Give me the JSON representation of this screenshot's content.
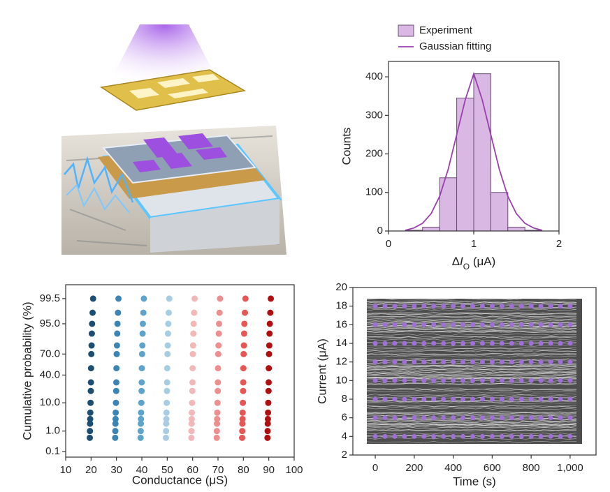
{
  "chart_data": [
    {
      "type": "histogram",
      "y_label": "Counts",
      "x_label": [
        "Δ",
        "I",
        "O",
        " (μA)"
      ],
      "xlim": [
        0,
        2
      ],
      "xticks": [
        0,
        1,
        2
      ],
      "ylim": [
        0,
        440
      ],
      "yticks": [
        0,
        100,
        200,
        300,
        400
      ],
      "bins": [
        0.2,
        0.4,
        0.6,
        0.8,
        1.0,
        1.2,
        1.4,
        1.6,
        1.8
      ],
      "series": [
        {
          "name": "Experiment",
          "color": "#d9b8e4",
          "values": [
            2,
            10,
            138,
            345,
            408,
            100,
            10,
            2
          ]
        },
        {
          "name": "Gaussian fitting",
          "color": "#9a3fb0",
          "type": "line",
          "x": [
            0.2,
            0.3,
            0.4,
            0.5,
            0.6,
            0.7,
            0.8,
            0.9,
            1.0,
            1.1,
            1.2,
            1.3,
            1.4,
            1.5,
            1.6,
            1.7,
            1.8
          ],
          "values": [
            2,
            8,
            20,
            45,
            90,
            160,
            250,
            340,
            408,
            340,
            250,
            160,
            90,
            45,
            20,
            8,
            2
          ]
        }
      ]
    },
    {
      "type": "scatter",
      "y_scale": "probability",
      "y_label": "Cumulative probability (%)",
      "x_label": "Conductance (μS)",
      "xlim": [
        10,
        100
      ],
      "xticks": [
        10,
        20,
        30,
        40,
        50,
        60,
        70,
        80,
        90,
        100
      ],
      "ylim": [
        0.05,
        99.9
      ],
      "yticks": [
        0.1,
        {
          "value": 1,
          "label": "1.0"
        },
        {
          "value": 10,
          "label": "10.0"
        },
        {
          "value": 40,
          "label": "40.0"
        },
        {
          "value": 70,
          "label": "70.0"
        },
        {
          "value": 95,
          "label": "95.0"
        },
        99.5
      ],
      "series": [
        {
          "color": "#1c4e72",
          "x": [
            19.5,
            19.55,
            19.6,
            19.65,
            19.7,
            19.8,
            19.9,
            19.95,
            20,
            20.1,
            20.2,
            20.3,
            20.4,
            20.6,
            20.8
          ],
          "values": [
            0.5,
            1,
            2,
            3,
            5,
            10,
            20,
            30,
            50,
            70,
            80,
            90,
            95,
            98,
            99.5
          ]
        },
        {
          "color": "#3c84b4",
          "x": [
            29.5,
            29.55,
            29.6,
            29.65,
            29.7,
            29.8,
            29.9,
            29.95,
            30,
            30.1,
            30.2,
            30.3,
            30.4,
            30.6,
            30.8
          ],
          "values": [
            0.5,
            1,
            2,
            3,
            5,
            10,
            20,
            30,
            50,
            70,
            80,
            90,
            95,
            98,
            99.5
          ]
        },
        {
          "color": "#5ea3cc",
          "x": [
            39.5,
            39.55,
            39.6,
            39.65,
            39.7,
            39.8,
            39.9,
            39.95,
            40,
            40.1,
            40.2,
            40.3,
            40.4,
            40.6,
            40.8
          ],
          "values": [
            0.5,
            1,
            2,
            3,
            5,
            10,
            20,
            30,
            50,
            70,
            80,
            90,
            95,
            98,
            99.5
          ]
        },
        {
          "color": "#a8cde3",
          "x": [
            49.5,
            49.55,
            49.6,
            49.65,
            49.7,
            49.8,
            49.9,
            49.95,
            50,
            50.1,
            50.2,
            50.3,
            50.4,
            50.6,
            50.8
          ],
          "values": [
            0.5,
            1,
            2,
            3,
            5,
            10,
            20,
            30,
            50,
            70,
            80,
            90,
            95,
            98,
            99.5
          ]
        },
        {
          "color": "#f2b8b8",
          "x": [
            59.5,
            59.55,
            59.6,
            59.65,
            59.7,
            59.8,
            59.9,
            59.95,
            60,
            60.1,
            60.2,
            60.3,
            60.4,
            60.6,
            60.8
          ],
          "values": [
            0.5,
            1,
            2,
            3,
            5,
            10,
            20,
            30,
            50,
            70,
            80,
            90,
            95,
            98,
            99.5
          ]
        },
        {
          "color": "#ee8e8e",
          "x": [
            69.5,
            69.55,
            69.6,
            69.65,
            69.7,
            69.8,
            69.9,
            69.95,
            70,
            70.1,
            70.2,
            70.3,
            70.4,
            70.6,
            70.8
          ],
          "values": [
            0.5,
            1,
            2,
            3,
            5,
            10,
            20,
            30,
            50,
            70,
            80,
            90,
            95,
            98,
            99.5
          ]
        },
        {
          "color": "#e85555",
          "x": [
            79.5,
            79.55,
            79.6,
            79.65,
            79.7,
            79.8,
            79.9,
            79.95,
            80,
            80.1,
            80.2,
            80.3,
            80.4,
            80.6,
            80.8
          ],
          "values": [
            0.5,
            1,
            2,
            3,
            5,
            10,
            20,
            30,
            50,
            70,
            80,
            90,
            95,
            98,
            99.5
          ]
        },
        {
          "color": "#b00f0f",
          "x": [
            89.5,
            89.55,
            89.6,
            89.65,
            89.7,
            89.8,
            89.9,
            89.95,
            90,
            90.1,
            90.2,
            90.3,
            90.4,
            90.6,
            90.8
          ],
          "values": [
            0.5,
            1,
            2,
            3,
            5,
            10,
            20,
            30,
            50,
            70,
            80,
            90,
            95,
            98,
            99.5
          ]
        }
      ]
    },
    {
      "type": "scatter",
      "y_label": "Current (μA)",
      "x_label": "Time (s)",
      "xlim": [
        -115,
        1133
      ],
      "xticks": [
        0,
        200,
        400,
        600,
        800,
        {
          "value": 1000,
          "label": "1,000"
        }
      ],
      "ylim": [
        2,
        20
      ],
      "yticks": [
        2,
        4,
        6,
        8,
        10,
        12,
        14,
        16,
        18,
        20
      ],
      "traces": {
        "color": "#4d4d4d",
        "range": [
          3.2,
          18.8
        ]
      },
      "x": [
        0,
        50,
        100,
        150,
        200,
        250,
        300,
        350,
        400,
        450,
        500,
        550,
        600,
        650,
        700,
        750,
        800,
        850,
        900,
        950,
        1000
      ],
      "series": [
        {
          "color": "#a070d8",
          "values": [
            4,
            4,
            4,
            4,
            4,
            4,
            4,
            4,
            4,
            4,
            4,
            4,
            4,
            4,
            4,
            4,
            4,
            4,
            4,
            4,
            4
          ]
        },
        {
          "color": "#a070d8",
          "values": [
            6,
            6,
            6,
            6,
            6,
            6,
            6,
            6,
            6,
            6,
            6,
            6,
            6,
            6,
            6,
            6,
            6,
            6,
            6,
            6,
            6
          ]
        },
        {
          "color": "#a070d8",
          "values": [
            8,
            8,
            8,
            8,
            8,
            8,
            8,
            8,
            8,
            8,
            8,
            8,
            8,
            8,
            8,
            8,
            8,
            8,
            8,
            8,
            8
          ]
        },
        {
          "color": "#a070d8",
          "values": [
            10,
            10,
            10,
            10,
            10,
            10,
            10,
            10,
            10,
            10,
            10,
            10,
            10,
            10,
            10,
            10,
            10,
            10,
            10,
            10,
            10
          ]
        },
        {
          "color": "#a070d8",
          "values": [
            12,
            12,
            12,
            12,
            12,
            12,
            12,
            12,
            12,
            12,
            12,
            12,
            12,
            12,
            12,
            12,
            12,
            12,
            12,
            12,
            12
          ]
        },
        {
          "color": "#a070d8",
          "values": [
            14,
            14,
            14,
            14,
            14,
            14,
            14,
            14,
            14,
            14,
            14,
            14,
            14,
            14,
            14,
            14,
            14,
            14,
            14,
            14,
            14
          ]
        },
        {
          "color": "#a070d8",
          "values": [
            16,
            16,
            16,
            16,
            16,
            16,
            16,
            16,
            16,
            16,
            16,
            16,
            16,
            16,
            16,
            16,
            16,
            16,
            16,
            16,
            16
          ]
        },
        {
          "color": "#a070d8",
          "values": [
            18,
            18,
            18,
            18,
            18,
            18,
            18,
            18,
            18,
            18,
            18,
            18,
            18,
            18,
            18,
            18,
            18,
            18,
            18,
            18,
            18
          ]
        }
      ]
    }
  ]
}
